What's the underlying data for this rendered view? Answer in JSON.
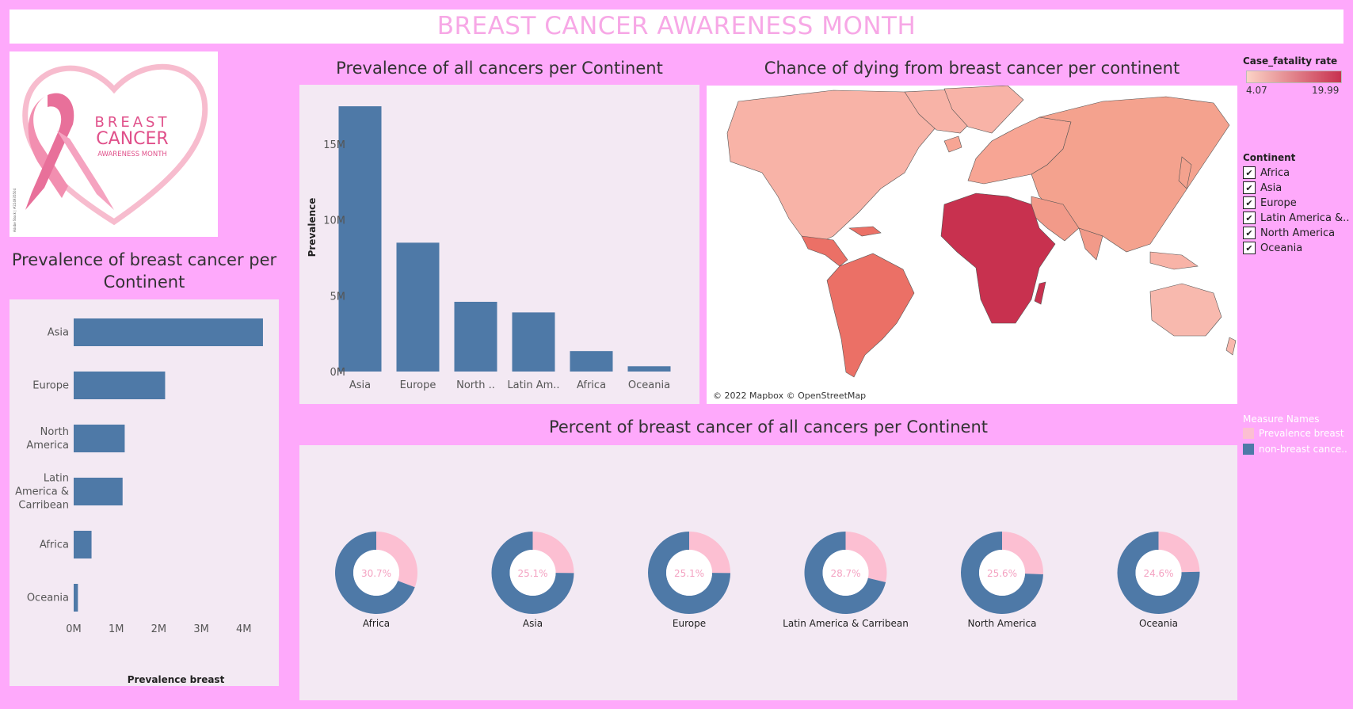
{
  "header": {
    "title": "BREAST CANCER AWARENESS MONTH"
  },
  "logo": {
    "line1": "BREAST",
    "line2": "CANCER",
    "line3": "AWARENESS MONTH",
    "credit": "Adobe Stock | #224935504"
  },
  "colors": {
    "bar": "#4e79a7",
    "breast": "#fcbfd2",
    "non_breast": "#4e79a7",
    "page_bg": "#fea9fb",
    "panel_bg": "#f3e9f3",
    "title_pink": "#f7a8e6"
  },
  "chart_data": [
    {
      "id": "prevalence-breast",
      "type": "bar",
      "orientation": "horizontal",
      "title": "Prevalence of breast cancer per Continent",
      "categories": [
        "Asia",
        "Europe",
        "North America",
        "Latin America & Carribean",
        "Africa",
        "Oceania"
      ],
      "category_labels": [
        [
          "Asia"
        ],
        [
          "Europe"
        ],
        [
          "North",
          "America"
        ],
        [
          "Latin",
          "America &",
          "Carribean"
        ],
        [
          "Africa"
        ],
        [
          "Oceania"
        ]
      ],
      "values": [
        4.45,
        2.15,
        1.2,
        1.15,
        0.42,
        0.1
      ],
      "xlabel": "Prevalence breast",
      "xlim": [
        0,
        4.6
      ],
      "xticks": [
        0,
        1,
        2,
        3,
        4
      ],
      "xtick_labels": [
        "0M",
        "1M",
        "2M",
        "3M",
        "4M"
      ],
      "unit": "M"
    },
    {
      "id": "prevalence-all",
      "type": "bar",
      "orientation": "vertical",
      "title": "Prevalence of all cancers per Continent",
      "categories": [
        "Asia",
        "Europe",
        "North ..",
        "Latin Am..",
        "Africa",
        "Oceania"
      ],
      "values": [
        17.5,
        8.5,
        4.6,
        3.9,
        1.35,
        0.35
      ],
      "ylabel": "Prevalence",
      "ylim": [
        0,
        18.5
      ],
      "yticks": [
        0,
        5,
        10,
        15
      ],
      "ytick_labels": [
        "0M",
        "5M",
        "10M",
        "15M"
      ],
      "unit": "M"
    },
    {
      "id": "map",
      "type": "choropleth",
      "title": "Chance of dying from breast cancer per continent",
      "measure": "Case_fatality rate",
      "range": [
        4.07,
        19.99
      ],
      "range_labels": [
        "4.07",
        "19.99"
      ],
      "attribution": "© 2022 Mapbox © OpenStreetMap"
    },
    {
      "id": "percent-breast",
      "type": "pie",
      "title": "Percent of breast cancer of all cancers per Continent",
      "series": [
        {
          "name": "Prevalence breast"
        },
        {
          "name": "non-breast cance.."
        }
      ],
      "items": [
        {
          "label": "Africa",
          "percent": 30.7,
          "text": "30.7%"
        },
        {
          "label": "Asia",
          "percent": 25.1,
          "text": "25.1%"
        },
        {
          "label": "Europe",
          "percent": 25.1,
          "text": "25.1%"
        },
        {
          "label": "Latin America & Carribean",
          "percent": 28.7,
          "text": "28.7%"
        },
        {
          "label": "North America",
          "percent": 25.6,
          "text": "25.6%"
        },
        {
          "label": "Oceania",
          "percent": 24.6,
          "text": "24.6%"
        }
      ]
    }
  ],
  "continent_filter": {
    "title": "Continent",
    "items": [
      "Africa",
      "Asia",
      "Europe",
      "Latin America &..",
      "North America",
      "Oceania"
    ]
  },
  "measure_legend": {
    "title": "Measure Names",
    "items": [
      "Prevalence breast",
      "non-breast cance.."
    ]
  }
}
